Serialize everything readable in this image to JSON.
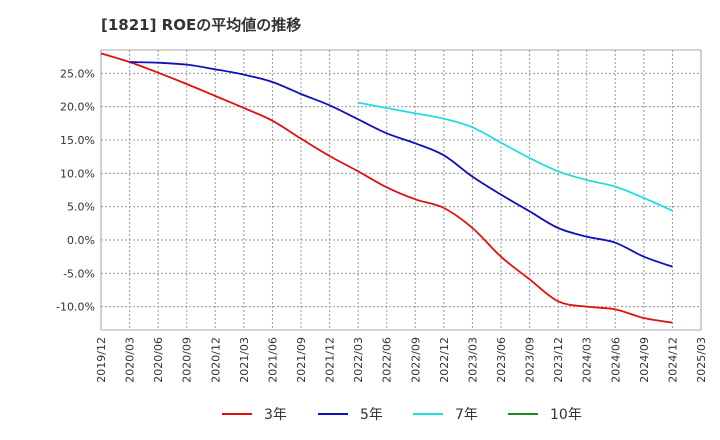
{
  "title": "[1821]  ROEの平均値の推移",
  "chart_data": {
    "type": "line",
    "title": "[1821]  ROEの平均値の推移",
    "xlabel": "",
    "ylabel": "",
    "ylim": [
      -13.5,
      28.5
    ],
    "y_ticks": [
      25,
      20,
      15,
      10,
      5,
      0,
      -5,
      -10
    ],
    "y_tick_labels": [
      "25.0%",
      "20.0%",
      "15.0%",
      "10.0%",
      "5.0%",
      "0.0%",
      "-5.0%",
      "-10.0%"
    ],
    "x_ticks": [
      "2019/12",
      "2020/03",
      "2020/06",
      "2020/09",
      "2020/12",
      "2021/03",
      "2021/06",
      "2021/09",
      "2021/12",
      "2022/03",
      "2022/06",
      "2022/09",
      "2022/12",
      "2023/03",
      "2023/06",
      "2023/09",
      "2023/12",
      "2024/03",
      "2024/06",
      "2024/09",
      "2024/12",
      "2025/03"
    ],
    "grid": "horizontal-dashed",
    "legend_position": "bottom",
    "series": [
      {
        "name": "3年",
        "color": "#dd1111",
        "x": [
          "2019/12",
          "2020/03",
          "2020/06",
          "2020/09",
          "2020/12",
          "2021/03",
          "2021/06",
          "2021/09",
          "2021/12",
          "2022/03",
          "2022/06",
          "2022/09",
          "2022/12",
          "2023/03",
          "2023/06",
          "2023/09",
          "2023/12",
          "2024/03",
          "2024/06",
          "2024/09",
          "2024/12"
        ],
        "values": [
          28.0,
          26.7,
          25.1,
          23.4,
          21.6,
          19.8,
          17.9,
          15.2,
          12.6,
          10.3,
          7.9,
          6.1,
          4.8,
          1.8,
          -2.5,
          -5.9,
          -9.2,
          -10.0,
          -10.4,
          -11.7,
          -12.4
        ]
      },
      {
        "name": "5年",
        "color": "#1111bb",
        "x": [
          "2020/03",
          "2020/06",
          "2020/09",
          "2020/12",
          "2021/03",
          "2021/06",
          "2021/09",
          "2021/12",
          "2022/03",
          "2022/06",
          "2022/09",
          "2022/12",
          "2023/03",
          "2023/06",
          "2023/09",
          "2023/12",
          "2024/03",
          "2024/06",
          "2024/09",
          "2024/12"
        ],
        "values": [
          26.7,
          26.6,
          26.3,
          25.6,
          24.8,
          23.7,
          21.9,
          20.2,
          18.1,
          16.0,
          14.5,
          12.7,
          9.5,
          6.8,
          4.3,
          1.8,
          0.5,
          -0.4,
          -2.5,
          -4.0
        ]
      },
      {
        "name": "7年",
        "color": "#22dddd",
        "x": [
          "2022/03",
          "2022/06",
          "2022/09",
          "2022/12",
          "2023/03",
          "2023/06",
          "2023/09",
          "2023/12",
          "2024/03",
          "2024/06",
          "2024/09",
          "2024/12"
        ],
        "values": [
          20.6,
          19.8,
          19.0,
          18.2,
          16.9,
          14.6,
          12.3,
          10.3,
          9.0,
          8.0,
          6.3,
          4.4
        ]
      },
      {
        "name": "10年",
        "color": "#228822",
        "x": [],
        "values": []
      }
    ]
  }
}
